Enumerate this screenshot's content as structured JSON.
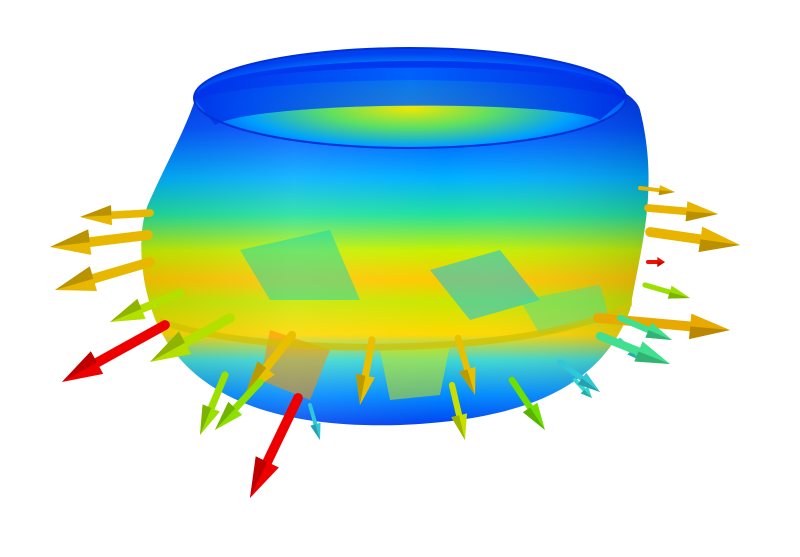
{
  "scene": {
    "background": "#ffffff",
    "subject": "deformed-cylindrical-shell-with-displacement-vectors",
    "colormap": [
      "#0000ff",
      "#0073ff",
      "#00c8ff",
      "#00e6a0",
      "#32dc32",
      "#c8f000",
      "#ffe600",
      "#ffa000",
      "#ff0000"
    ]
  },
  "arrows": [
    {
      "color": "#e8b800"
    },
    {
      "color": "#e8b800"
    },
    {
      "color": "#e8b800"
    },
    {
      "color": "#ee0000"
    },
    {
      "color": "#b4e000"
    },
    {
      "color": "#b4e000"
    },
    {
      "color": "#9be000"
    },
    {
      "color": "#e8c000"
    },
    {
      "color": "#ee0000"
    },
    {
      "color": "#8ee000"
    },
    {
      "color": "#e8c000"
    },
    {
      "color": "#e8c000"
    },
    {
      "color": "#c8e000"
    },
    {
      "color": "#6ee000"
    },
    {
      "color": "#30d8d0"
    },
    {
      "color": "#30d8d0"
    },
    {
      "color": "#e8b400"
    },
    {
      "color": "#e8b400"
    },
    {
      "color": "#e8b400"
    },
    {
      "color": "#ee1000"
    },
    {
      "color": "#9be000"
    },
    {
      "color": "#e8aa00"
    },
    {
      "color": "#40e090"
    },
    {
      "color": "#40e090"
    },
    {
      "color": "#30c8d8"
    },
    {
      "color": "#30c8d8"
    }
  ]
}
